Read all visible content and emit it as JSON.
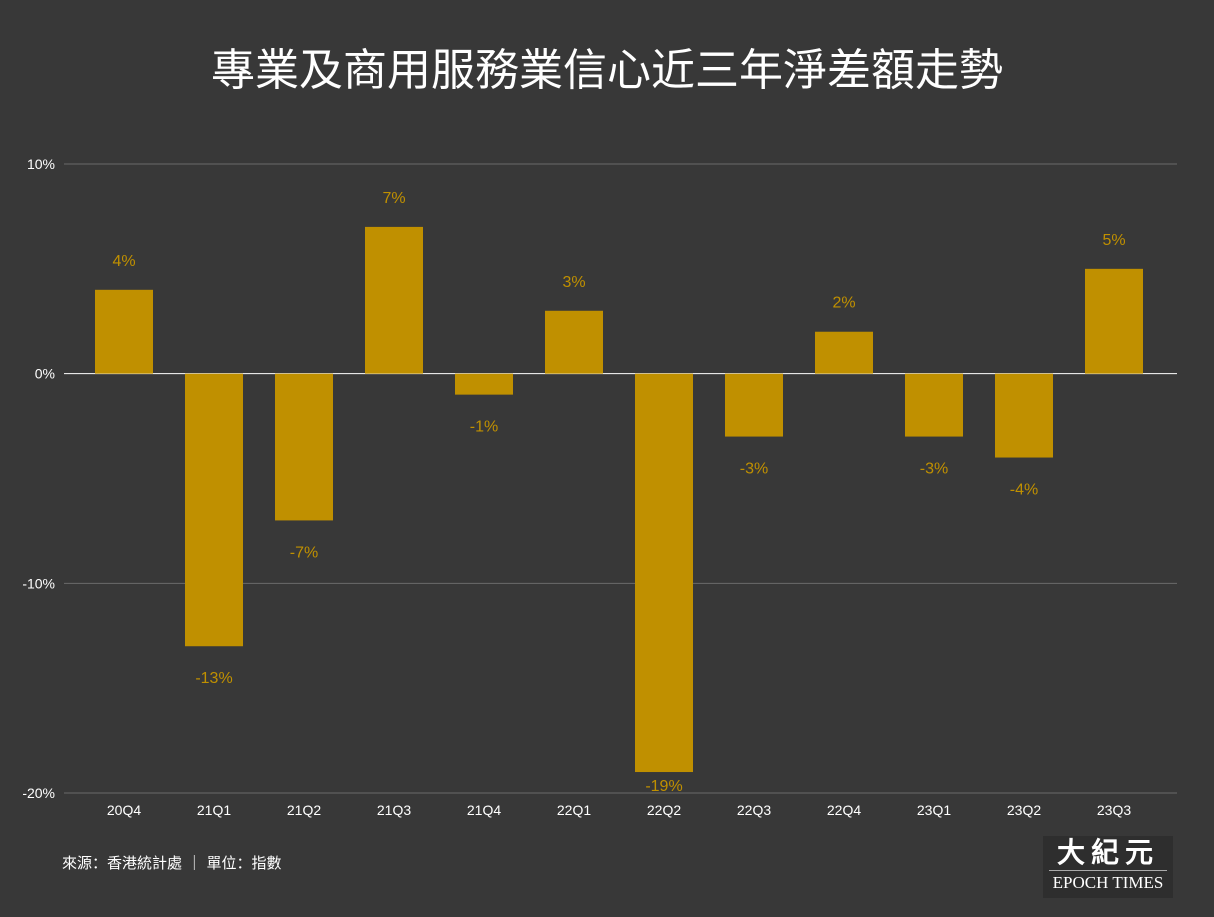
{
  "chart_data": {
    "type": "bar",
    "title": "專業及商用服務業信心近三年淨差額走勢",
    "categories": [
      "20Q4",
      "21Q1",
      "21Q2",
      "21Q3",
      "21Q4",
      "22Q1",
      "22Q2",
      "22Q3",
      "22Q4",
      "23Q1",
      "23Q2",
      "23Q3"
    ],
    "values": [
      4,
      -13,
      -7,
      7,
      -1,
      3,
      -19,
      -3,
      2,
      -3,
      -4,
      5
    ],
    "data_labels": [
      "4%",
      "-13%",
      "-7%",
      "7%",
      "-1%",
      "3%",
      "-19%",
      "-3%",
      "2%",
      "-3%",
      "-4%",
      "5%"
    ],
    "ylim": [
      -20,
      10
    ],
    "yticks": [
      10,
      0,
      -10,
      -20
    ],
    "ytick_labels": [
      "10%",
      "0%",
      "-10%",
      "-20%"
    ],
    "xlabel": "",
    "ylabel": "",
    "grid": true,
    "bar_color": "#c09000",
    "label_color": "#c09000"
  },
  "footer": {
    "source": "來源：香港統計處 ｜ 單位：指數"
  },
  "logo": {
    "cn": "大紀元",
    "en": "EPOCH TIMES"
  }
}
